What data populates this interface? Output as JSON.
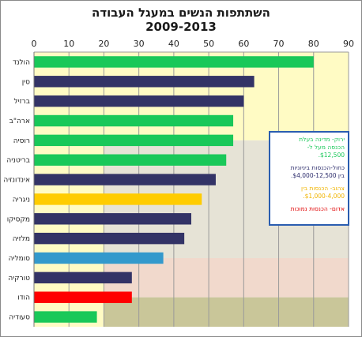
{
  "chart_data": {
    "type": "bar",
    "orientation": "horizontal",
    "title_line1": "השתתפות הנשים במעגל העבודה",
    "title_line2": "2009-2013",
    "xlim": [
      0,
      90
    ],
    "x_ticks": [
      "0",
      "10",
      "20",
      "30",
      "40",
      "50",
      "60",
      "70",
      "80",
      "90"
    ],
    "axis_position": "top",
    "grid": true,
    "categories": [
      "הולנד",
      "סין",
      "ברזיל",
      "ארה\"ב",
      "רוסיה",
      "בריטניה",
      "אינדונזיה",
      "ניגריה",
      "מקסיקו",
      "מלזיה",
      "סומליה",
      "טורקיה",
      "הודו",
      "סעודיה"
    ],
    "values": [
      80,
      63,
      60,
      57,
      57,
      55,
      52,
      48,
      45,
      43,
      37,
      28,
      28,
      18
    ],
    "bar_colors": [
      "#19c859",
      "#333366",
      "#333366",
      "#19c859",
      "#19c859",
      "#19c859",
      "#333366",
      "#ffcc00",
      "#333366",
      "#333366",
      "#3399cc",
      "#333366",
      "#ff0000",
      "#19c859"
    ],
    "band_colors": [
      "#fffbc4",
      "#e6e3d6",
      "#f1d9cc",
      "#c9c699"
    ],
    "legend_position": "right",
    "legend": [
      {
        "color": "#19c859",
        "lines": [
          "ירוק- מדינה בעלת",
          "הכנסה מעל ל-",
          "$12,500."
        ]
      },
      {
        "color": "#2a2a6a",
        "lines": [
          "כחול-הכנסות ביניוניות",
          "בין $4,000-12,500."
        ]
      },
      {
        "color": "#f0b400",
        "lines": [
          "צהוב- הכנסות בין",
          "$1,000-4,000."
        ]
      },
      {
        "color": "#e00000",
        "lines": [
          "אדום- הכנסות נמוכות"
        ]
      }
    ]
  }
}
